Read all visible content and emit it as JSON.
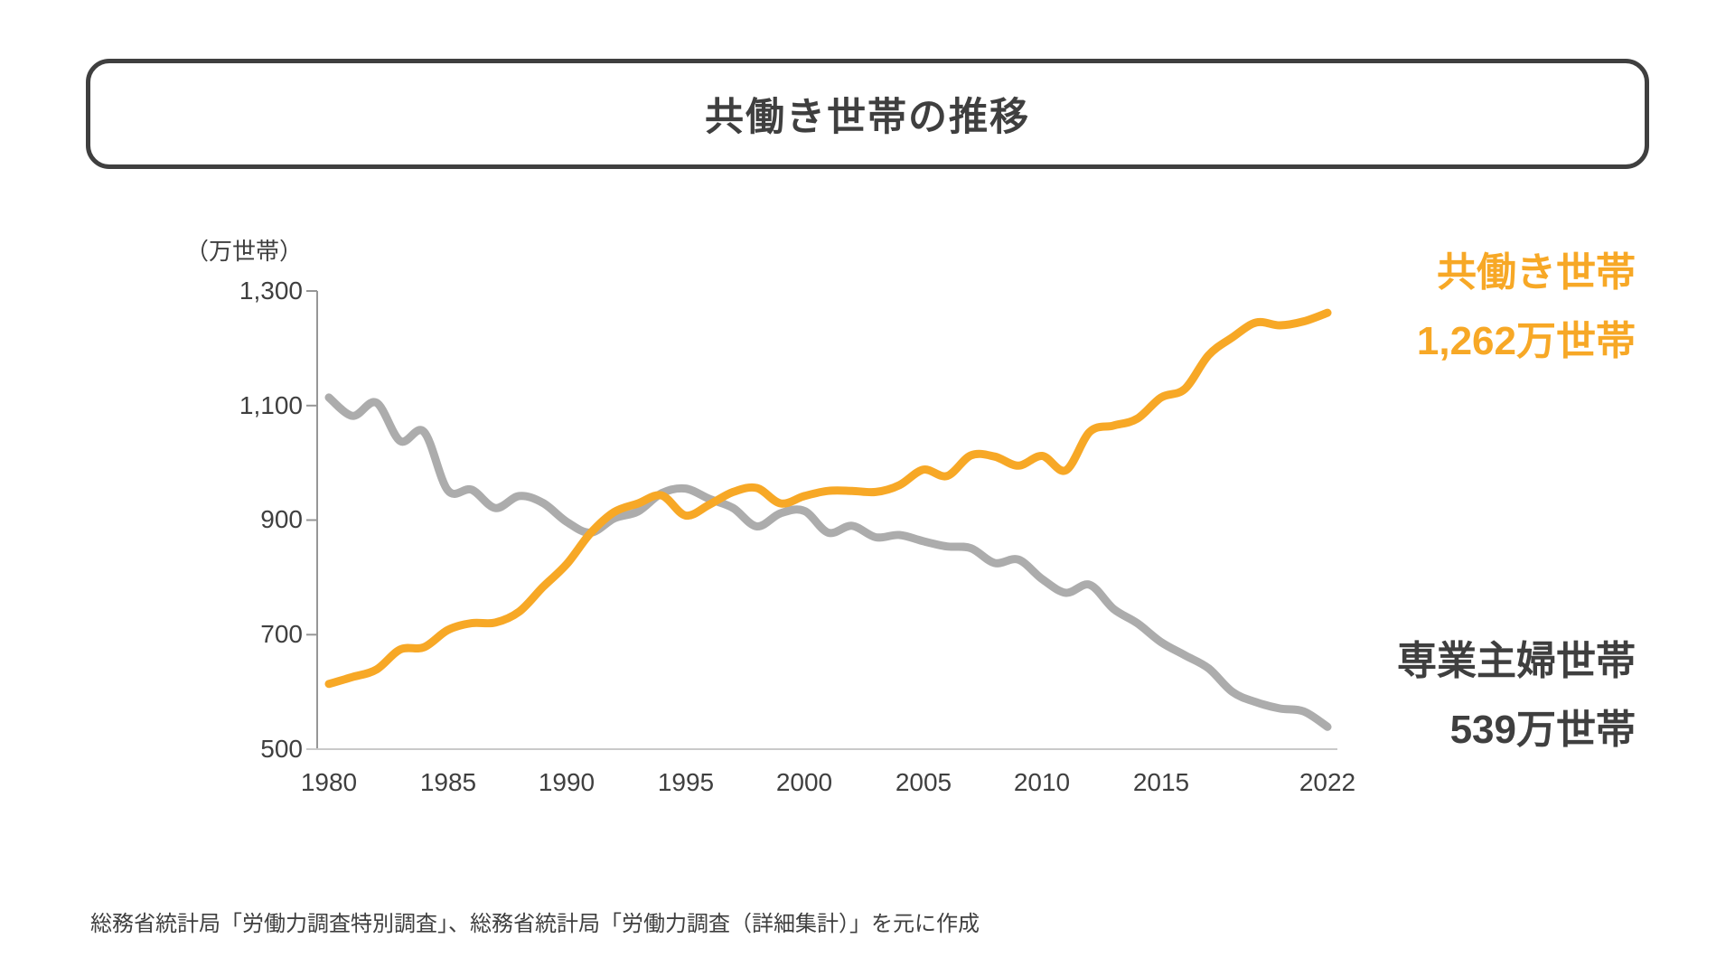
{
  "title": {
    "text": "共働き世帯の推移"
  },
  "y_axis": {
    "unit_label": "（万世帯）",
    "tick_labels": [
      "1,300",
      "1,100",
      "900",
      "700",
      "500"
    ],
    "tick_values": [
      1300,
      1100,
      900,
      700,
      500
    ]
  },
  "x_axis": {
    "tick_labels": [
      "1980",
      "1985",
      "1990",
      "1995",
      "2000",
      "2005",
      "2010",
      "2015",
      "2022"
    ],
    "tick_years": [
      1980,
      1985,
      1990,
      1995,
      2000,
      2005,
      2010,
      2015,
      2022
    ]
  },
  "legend": {
    "dual_income": {
      "label": "共働き世帯",
      "value": "1,262万世帯"
    },
    "housewife": {
      "label": "専業主婦世帯",
      "value": "539万世帯"
    }
  },
  "source": "総務省統計局「労働力調査特別調査」、総務省統計局「労働力調査（詳細集計）」を元に作成",
  "colors": {
    "dual_income": "#F7A826",
    "housewife": "#ACACAC",
    "text": "#3F3F3F",
    "axis": "#969696",
    "baseline": "#C9C9C9"
  },
  "chart_data": {
    "type": "line",
    "title": "共働き世帯の推移",
    "ylabel": "（万世帯）",
    "ylim": [
      500,
      1300
    ],
    "grid": false,
    "legend_position": "right-outside",
    "x": [
      1980,
      1981,
      1982,
      1983,
      1984,
      1985,
      1986,
      1987,
      1988,
      1989,
      1990,
      1991,
      1992,
      1993,
      1994,
      1995,
      1996,
      1997,
      1998,
      1999,
      2000,
      2001,
      2002,
      2003,
      2004,
      2005,
      2006,
      2007,
      2008,
      2009,
      2010,
      2011,
      2012,
      2013,
      2014,
      2015,
      2016,
      2017,
      2018,
      2019,
      2020,
      2021,
      2022
    ],
    "series": [
      {
        "name": "共働き世帯",
        "color": "#F7A826",
        "final_value_label": "1,262万世帯",
        "values": [
          614,
          626,
          639,
          674,
          678,
          708,
          720,
          721,
          740,
          783,
          823,
          877,
          914,
          929,
          943,
          908,
          927,
          949,
          956,
          929,
          942,
          951,
          951,
          949,
          961,
          988,
          977,
          1013,
          1011,
          995,
          1012,
          987,
          1054,
          1065,
          1077,
          1114,
          1129,
          1188,
          1219,
          1245,
          1240,
          1247,
          1262
        ]
      },
      {
        "name": "専業主婦世帯",
        "color": "#ACACAC",
        "final_value_label": "539万世帯",
        "values": [
          1114,
          1082,
          1105,
          1038,
          1054,
          952,
          953,
          921,
          942,
          930,
          897,
          878,
          903,
          915,
          947,
          955,
          937,
          921,
          889,
          912,
          916,
          878,
          890,
          870,
          874,
          863,
          854,
          851,
          825,
          831,
          797,
          773,
          787,
          745,
          720,
          687,
          664,
          641,
          600,
          582,
          571,
          566,
          539
        ]
      }
    ]
  }
}
